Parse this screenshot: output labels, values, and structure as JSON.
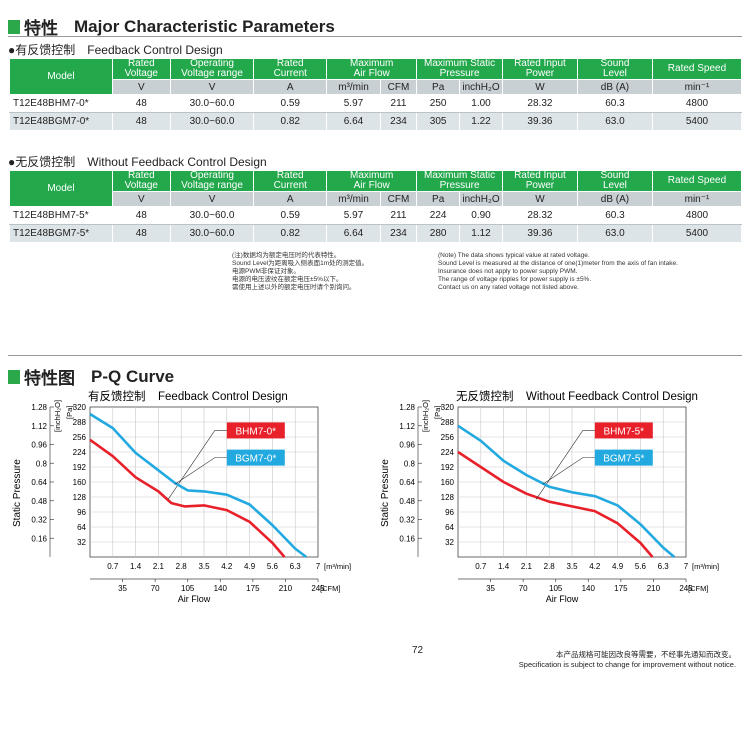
{
  "header1": {
    "zh": "特性",
    "en": "Major Characteristic Parameters"
  },
  "section1": {
    "bullet": "●",
    "zh": "有反馈控制",
    "en": "Feedback Control Design"
  },
  "section2": {
    "bullet": "●",
    "zh": "无反馈控制",
    "en": "Without Feedback Control Design"
  },
  "table_header": {
    "model": "Model",
    "rated_voltage": "Rated\nVoltage",
    "operating_voltage": "Operating\nVoltage range",
    "rated_current": "Rated\nCurrent",
    "max_airflow": "Maximum\nAir Flow",
    "max_static": "Maximum Static\nPressure",
    "rated_input": "Rated Input\nPower",
    "sound": "Sound\nLevel",
    "rated_speed": "Rated Speed"
  },
  "table_units": [
    "V",
    "V",
    "A",
    "m³/min",
    "CFM",
    "Pa",
    "inchH₂O",
    "W",
    "dB (A)",
    "min⁻¹"
  ],
  "table1_rows": [
    [
      "T12E48BHM7-0*",
      "48",
      "30.0~60.0",
      "0.59",
      "5.97",
      "211",
      "250",
      "1.00",
      "28.32",
      "60.3",
      "4800"
    ],
    [
      "T12E48BGM7-0*",
      "48",
      "30.0~60.0",
      "0.82",
      "6.64",
      "234",
      "305",
      "1.22",
      "39.36",
      "63.0",
      "5400"
    ]
  ],
  "table2_rows": [
    [
      "T12E48BHM7-5*",
      "48",
      "30.0~60.0",
      "0.59",
      "5.97",
      "211",
      "224",
      "0.90",
      "28.32",
      "60.3",
      "4800"
    ],
    [
      "T12E48BGM7-5*",
      "48",
      "30.0~60.0",
      "0.82",
      "6.64",
      "234",
      "280",
      "1.12",
      "39.36",
      "63.0",
      "5400"
    ]
  ],
  "notes_zh": [
    "(注)数据均为额定电压时的代表特性。",
    "Sound Level为距离吸入侧表面1m处的测定值。",
    "电源PWM非保证对象。",
    "电源的电压波纹在额定电压±5%以下。",
    "需使用上述以外的额定电压时请个别询问。"
  ],
  "notes_en": [
    "(Note) The data shows typical value at rated voltage.",
    "Sound Level is measured at the distance of one(1)meter from the axis of fan intake.",
    "Insurance does not apply to power supply PWM.",
    "The range of voltage ripples for power supply is ±5%.",
    "Contact us on any rated voltage not listed above."
  ],
  "header2": {
    "zh": "特性图",
    "en": "P-Q Curve"
  },
  "chart_data": [
    {
      "type": "line",
      "title_zh": "有反馈控制",
      "title": "Feedback Control Design",
      "xlabel": "Air Flow",
      "ylabel": "Static Pressure",
      "x_unit_metric": "[m³/min]",
      "x_unit_imperial": "[CFM]",
      "y_unit_imperial": "[inchH₂O]",
      "y_unit_metric": "[Pa]",
      "xlim": [
        0,
        7
      ],
      "ylim": [
        0,
        320
      ],
      "x_ticks_metric": [
        "0.7",
        "1.4",
        "2.1",
        "2.8",
        "3.5",
        "4.2",
        "4.9",
        "5.6",
        "6.3",
        "7"
      ],
      "x_ticks_cfm": [
        "35",
        "70",
        "105",
        "140",
        "175",
        "210",
        "245"
      ],
      "y_ticks_pa": [
        "32",
        "64",
        "96",
        "128",
        "160",
        "192",
        "224",
        "256",
        "288",
        "320"
      ],
      "y_ticks_inch": [
        "0.16",
        "0.32",
        "0.48",
        "0.64",
        "0.8",
        "0.96",
        "1.12",
        "1.28"
      ],
      "series": [
        {
          "name": "BHM7-0*",
          "color": "#e8202a",
          "x": [
            0,
            0.7,
            1.4,
            2.1,
            2.5,
            2.9,
            3.5,
            4.2,
            4.9,
            5.6,
            5.97
          ],
          "y": [
            250,
            215,
            170,
            140,
            115,
            108,
            110,
            100,
            75,
            30,
            0
          ]
        },
        {
          "name": "BGM7-0*",
          "color": "#22a9e0",
          "x": [
            0,
            0.7,
            1.4,
            2.1,
            2.6,
            3.0,
            3.5,
            4.2,
            4.9,
            5.6,
            6.3,
            6.64
          ],
          "y": [
            305,
            275,
            222,
            185,
            158,
            142,
            140,
            133,
            112,
            68,
            18,
            0
          ]
        }
      ]
    },
    {
      "type": "line",
      "title_zh": "无反馈控制",
      "title": "Without Feedback Control Design",
      "xlabel": "Air Flow",
      "ylabel": "Static Pressure",
      "x_unit_metric": "[m³/min]",
      "x_unit_imperial": "[CFM]",
      "y_unit_imperial": "[inchH₂O]",
      "y_unit_metric": "[Pa]",
      "xlim": [
        0,
        7
      ],
      "ylim": [
        0,
        320
      ],
      "x_ticks_metric": [
        "0.7",
        "1.4",
        "2.1",
        "2.8",
        "3.5",
        "4.2",
        "4.9",
        "5.6",
        "6.3",
        "7"
      ],
      "x_ticks_cfm": [
        "35",
        "70",
        "105",
        "140",
        "175",
        "210",
        "245"
      ],
      "y_ticks_pa": [
        "32",
        "64",
        "96",
        "128",
        "160",
        "192",
        "224",
        "256",
        "288",
        "320"
      ],
      "y_ticks_inch": [
        "0.16",
        "0.32",
        "0.48",
        "0.64",
        "0.8",
        "0.96",
        "1.12",
        "1.28"
      ],
      "series": [
        {
          "name": "BHM7-5*",
          "color": "#e8202a",
          "x": [
            0,
            0.7,
            1.4,
            2.1,
            2.8,
            3.5,
            4.2,
            4.9,
            5.6,
            5.97
          ],
          "y": [
            224,
            192,
            160,
            135,
            118,
            108,
            98,
            72,
            30,
            0
          ]
        },
        {
          "name": "BGM7-5*",
          "color": "#22a9e0",
          "x": [
            0,
            0.7,
            1.4,
            2.1,
            2.8,
            3.5,
            4.2,
            4.9,
            5.6,
            6.3,
            6.64
          ],
          "y": [
            280,
            248,
            205,
            175,
            150,
            138,
            130,
            110,
            70,
            20,
            0
          ]
        }
      ]
    }
  ],
  "page_number": "72",
  "disclaimer_zh": "本产品规格可能因改良等需要，不经事先通知而改变。",
  "disclaimer_en": "Specification is subject to change for improvement without notice."
}
